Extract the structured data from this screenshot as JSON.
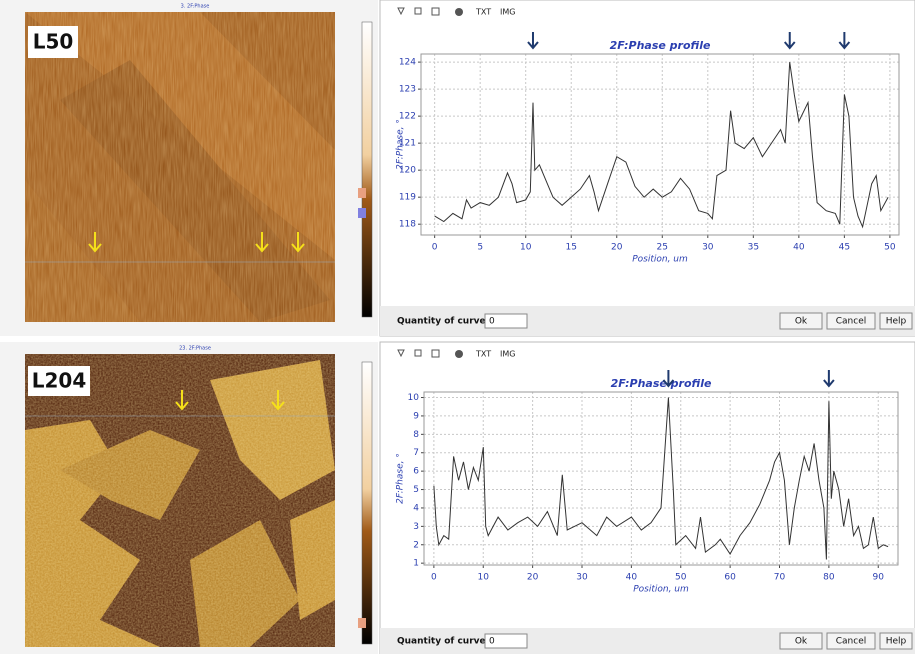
{
  "panels": [
    {
      "label": "L50",
      "image_title": "3. 2F:Phase"
    },
    {
      "label": "L204",
      "image_title": "23. 2F:Phase"
    }
  ],
  "dialog": {
    "toolbar": [
      "TXT",
      "IMG"
    ],
    "quantity_label": "Quantity of curves",
    "quantity_value": "0",
    "buttons": [
      "Ok",
      "Cancel",
      "Help"
    ]
  },
  "chart_data": [
    {
      "type": "line",
      "title": "2F:Phase profile",
      "x_label": "Position, um",
      "y_label": "2F:Phase, °",
      "color": "#333333",
      "grid": true,
      "xlim": [
        -1.5,
        51
      ],
      "ylim": [
        117.6,
        124.3
      ],
      "xticks": [
        0,
        5,
        10,
        15,
        20,
        25,
        30,
        35,
        40,
        45,
        50
      ],
      "yticks": [
        118,
        119,
        120,
        121,
        122,
        123,
        124
      ],
      "markers_x": [
        10.8,
        39,
        45
      ],
      "x": [
        0,
        1,
        2,
        3,
        3.5,
        4,
        5,
        6,
        7,
        8,
        8.5,
        9,
        10,
        10.5,
        10.8,
        11,
        11.5,
        12,
        13,
        14,
        15,
        16,
        17,
        17.5,
        18,
        19,
        20,
        21,
        22,
        23,
        24,
        25,
        26,
        27,
        28,
        29,
        30,
        30.5,
        31,
        32,
        32.5,
        33,
        34,
        35,
        36,
        37,
        38,
        38.5,
        39,
        39.5,
        40,
        41,
        41.5,
        42,
        43,
        44,
        44.5,
        45,
        45.5,
        46,
        46.5,
        47,
        48,
        48.5,
        49,
        49.8
      ],
      "values": [
        118.3,
        118.1,
        118.4,
        118.2,
        118.9,
        118.6,
        118.8,
        118.7,
        119.0,
        119.9,
        119.5,
        118.8,
        118.9,
        119.2,
        122.5,
        120.0,
        120.2,
        119.8,
        119.0,
        118.7,
        119.0,
        119.3,
        119.8,
        119.2,
        118.5,
        119.5,
        120.5,
        120.3,
        119.4,
        119.0,
        119.3,
        119.0,
        119.2,
        119.7,
        119.3,
        118.5,
        118.4,
        118.2,
        119.8,
        120.0,
        122.2,
        121.0,
        120.8,
        121.2,
        120.5,
        121.0,
        121.5,
        121.0,
        124.0,
        122.8,
        121.8,
        122.5,
        120.5,
        118.8,
        118.5,
        118.4,
        118.0,
        122.8,
        122.0,
        119.0,
        118.3,
        117.9,
        119.5,
        119.8,
        118.5,
        119.0
      ]
    },
    {
      "type": "line",
      "title": "2F:Phase profile",
      "x_label": "Position, um",
      "y_label": "2F:Phase, °",
      "color": "#333333",
      "grid": true,
      "xlim": [
        -2,
        94
      ],
      "ylim": [
        0.9,
        10.3
      ],
      "xticks": [
        0,
        10,
        20,
        30,
        40,
        50,
        60,
        70,
        80,
        90
      ],
      "yticks": [
        1,
        2,
        3,
        4,
        5,
        6,
        7,
        8,
        9,
        10
      ],
      "markers_x": [
        47.5,
        80
      ],
      "x": [
        0,
        0.5,
        1,
        2,
        3,
        4,
        5,
        6,
        7,
        8,
        9,
        10,
        10.5,
        11,
        13,
        15,
        17,
        19,
        21,
        23,
        25,
        26,
        27,
        30,
        33,
        35,
        37,
        40,
        42,
        44,
        46,
        47.5,
        48.5,
        49,
        51,
        53,
        54,
        55,
        57,
        58,
        60,
        62,
        64,
        66,
        68,
        69,
        70,
        71,
        72,
        73,
        74,
        75,
        76,
        77,
        78,
        79,
        79.5,
        80,
        80.5,
        81,
        82,
        83,
        84,
        85,
        86,
        87,
        88,
        89,
        90,
        91,
        92
      ],
      "values": [
        5.2,
        3.0,
        2.0,
        2.5,
        2.3,
        6.8,
        5.5,
        6.5,
        5.0,
        6.2,
        5.5,
        7.3,
        3.0,
        2.5,
        3.5,
        2.8,
        3.2,
        3.5,
        3.0,
        3.8,
        2.5,
        5.8,
        2.8,
        3.2,
        2.5,
        3.5,
        3.0,
        3.5,
        2.8,
        3.2,
        4.0,
        10.0,
        5.0,
        2.0,
        2.5,
        1.8,
        3.5,
        1.6,
        2.0,
        2.3,
        1.5,
        2.5,
        3.2,
        4.2,
        5.5,
        6.5,
        7.0,
        5.5,
        2.0,
        4.0,
        5.5,
        6.8,
        6.0,
        7.5,
        5.5,
        4.0,
        1.2,
        9.8,
        4.5,
        6.0,
        5.0,
        3.0,
        4.5,
        2.5,
        3.0,
        1.8,
        2.0,
        3.5,
        1.8,
        2.0,
        1.9
      ]
    }
  ]
}
